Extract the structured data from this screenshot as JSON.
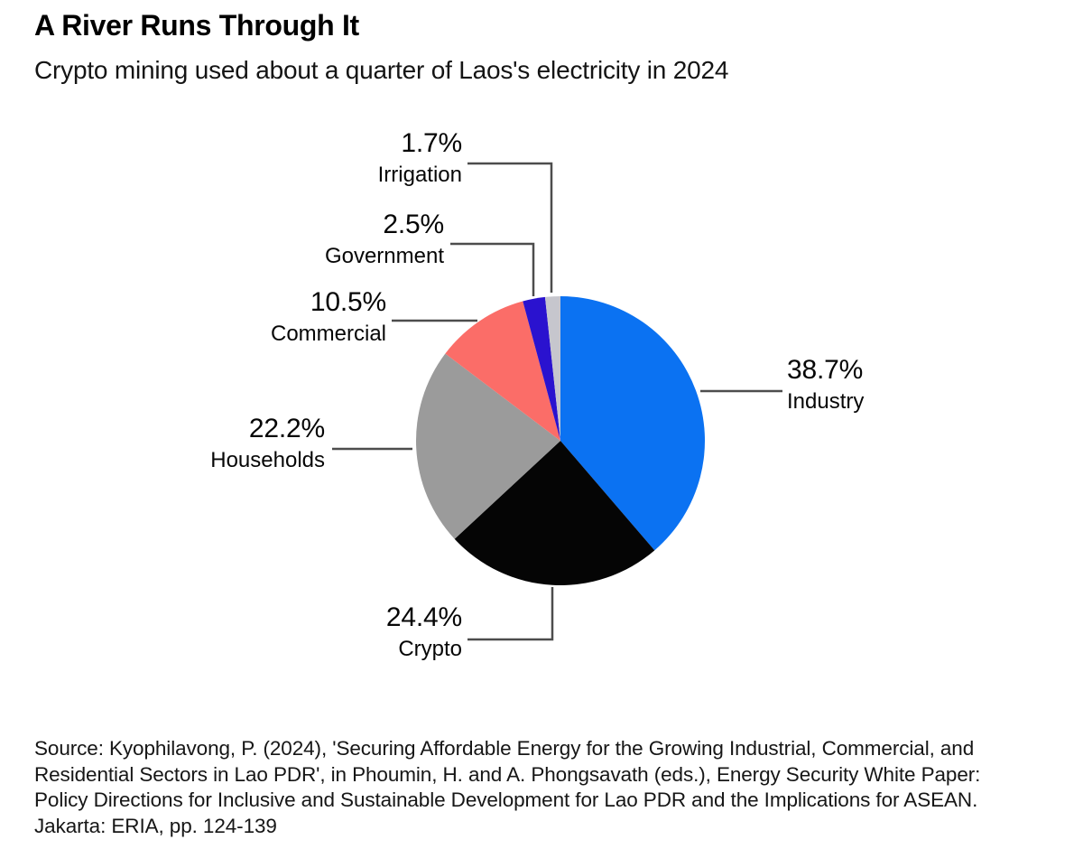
{
  "header": {
    "title": "A River Runs Through It",
    "subtitle": "Crypto mining used about a quarter of Laos's electricity in 2024"
  },
  "chart_data": {
    "type": "pie",
    "title": "A River Runs Through It",
    "subtitle": "Crypto mining used about a quarter of Laos's electricity in 2024",
    "unit": "percent of Laos electricity use, 2024",
    "direction": "clockwise",
    "start_angle_deg": 0,
    "legend_position": "callout-labels",
    "slices": [
      {
        "label": "Industry",
        "value": 38.7,
        "display": "38.7%",
        "color": "#0b72f2"
      },
      {
        "label": "Crypto",
        "value": 24.4,
        "display": "24.4%",
        "color": "#050505"
      },
      {
        "label": "Households",
        "value": 22.2,
        "display": "22.2%",
        "color": "#9b9b9b"
      },
      {
        "label": "Commercial",
        "value": 10.5,
        "display": "10.5%",
        "color": "#fb6d68"
      },
      {
        "label": "Government",
        "value": 2.5,
        "display": "2.5%",
        "color": "#2a12cf"
      },
      {
        "label": "Irrigation",
        "value": 1.7,
        "display": "1.7%",
        "color": "#c6c6cd"
      }
    ]
  },
  "source": {
    "lines": [
      "Source: Kyophilavong, P. (2024), 'Securing Affordable Energy for the Growing Industrial, Commercial, and",
      "Residential Sectors in Lao PDR', in Phoumin, H. and A. Phongsavath (eds.), Energy Security White Paper:",
      "Policy Directions for Inclusive and Sustainable Development for Lao PDR and the Implications for ASEAN.",
      "Jakarta: ERIA, pp. 124-139"
    ]
  }
}
